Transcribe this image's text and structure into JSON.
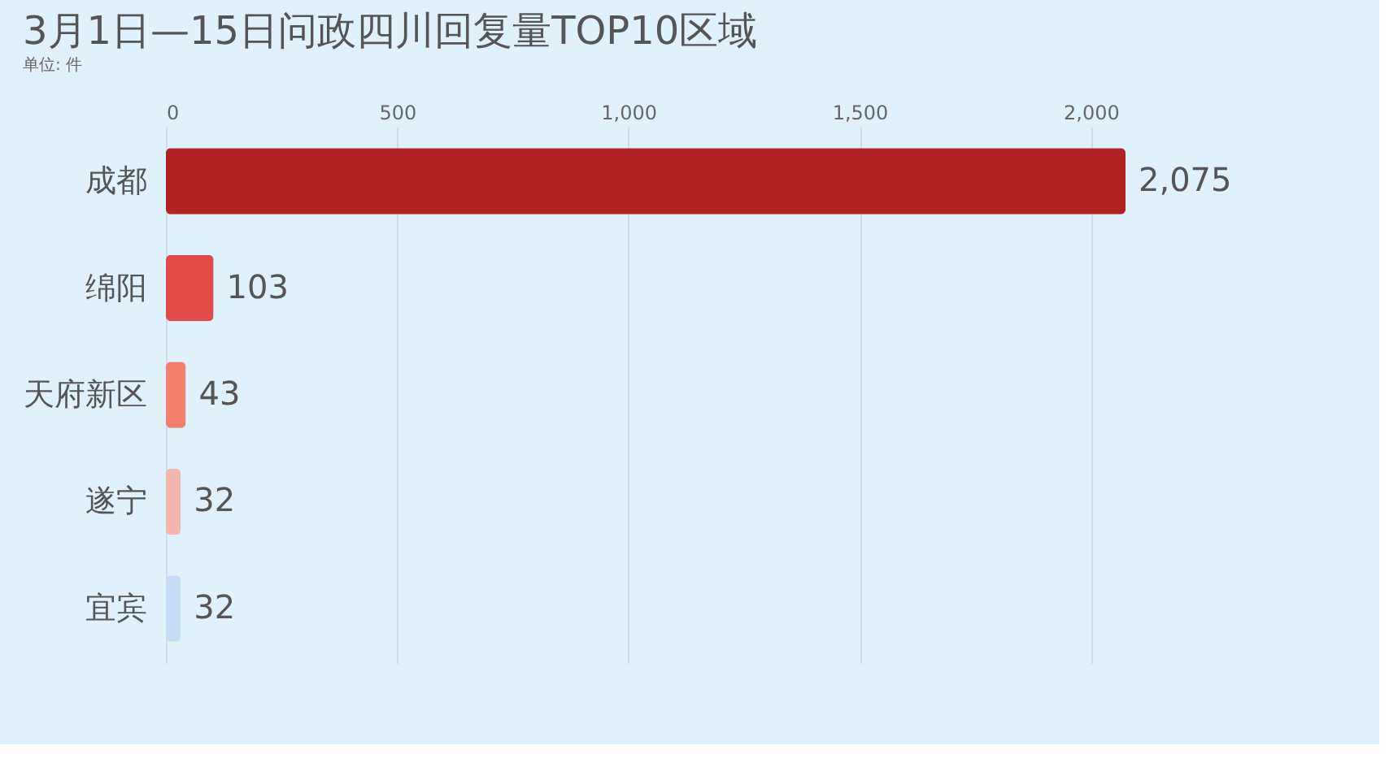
{
  "chart_data": {
    "type": "bar",
    "orientation": "horizontal",
    "title": "3月1日—15日问政四川回复量TOP10区域",
    "subtitle": "单位: 件",
    "categories": [
      "成都",
      "绵阳",
      "天府新区",
      "遂宁",
      "宜宾"
    ],
    "values": [
      2075,
      103,
      43,
      32,
      32
    ],
    "colors": [
      "#b22222",
      "#e24a4a",
      "#f2806f",
      "#f6b6ae",
      "#c4dcf6"
    ],
    "value_labels": [
      "2,075",
      "103",
      "43",
      "32",
      "32"
    ],
    "xlim": [
      0,
      2075
    ],
    "xticks": [
      0,
      500,
      {
        "value": 1000,
        "label": "1,000"
      },
      {
        "value": 1500,
        "label": "1,500"
      },
      {
        "value": 2000,
        "label": "2,000"
      }
    ],
    "grid": "x"
  }
}
